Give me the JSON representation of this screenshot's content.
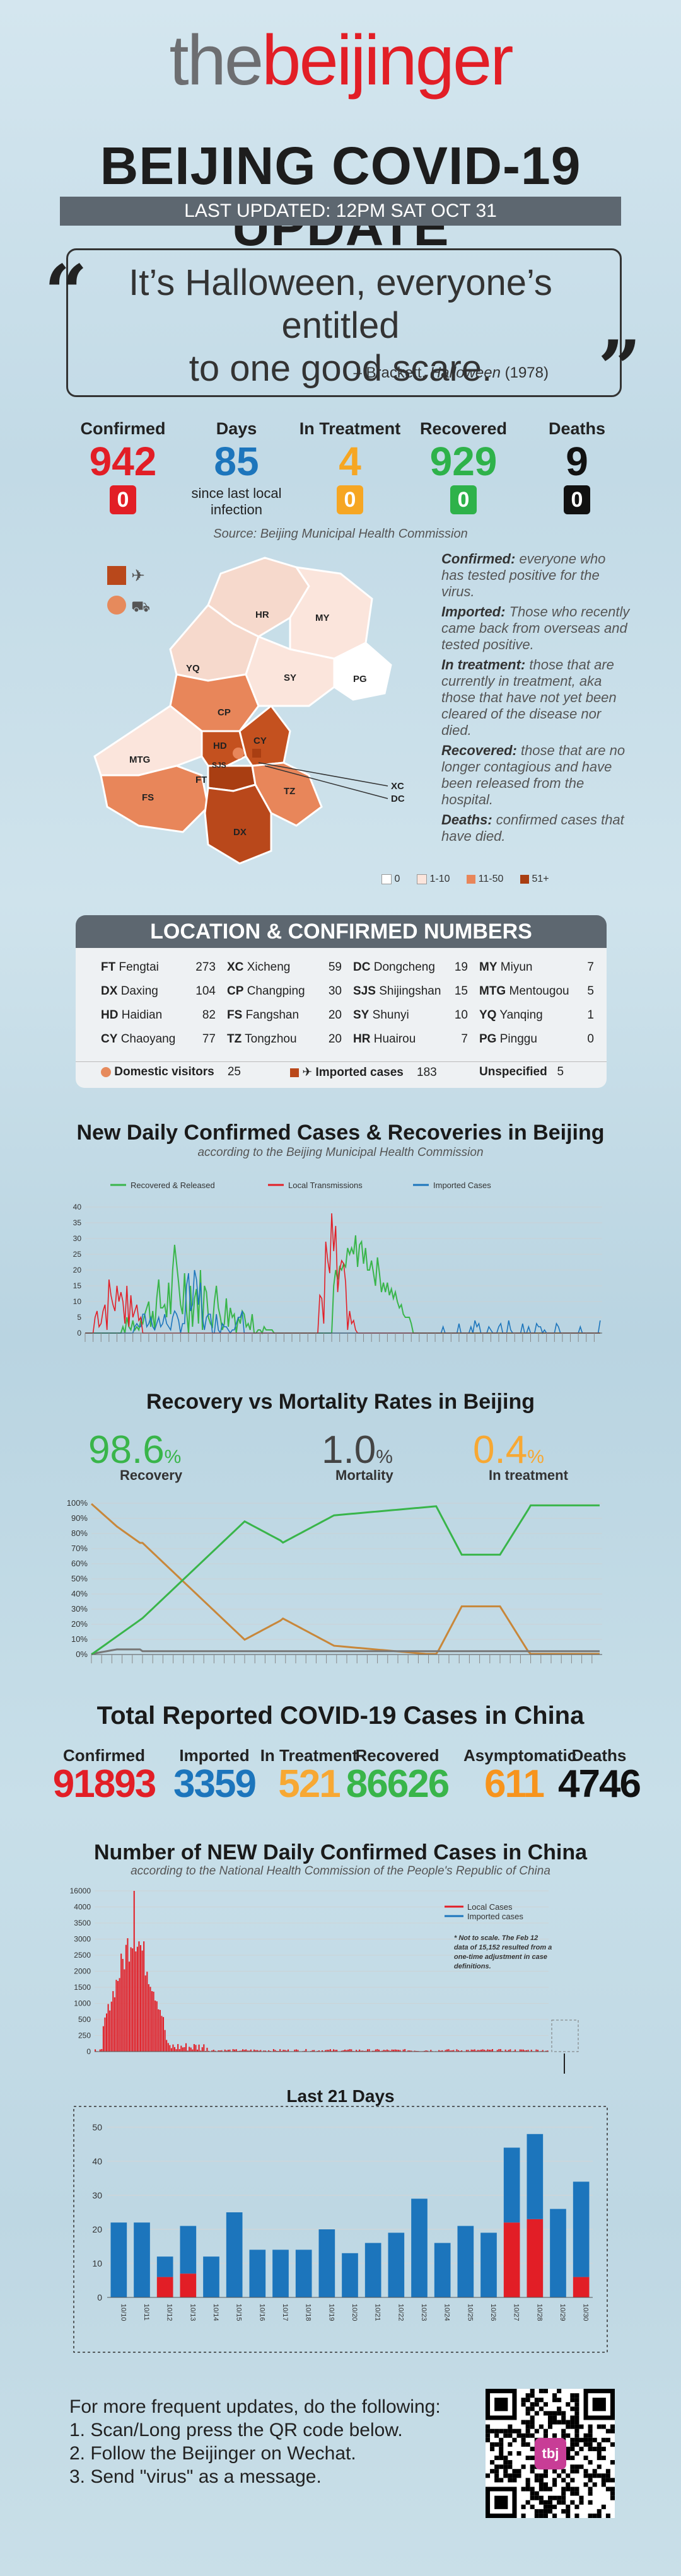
{
  "logo": {
    "the": "the",
    "beijinger": "beijinger"
  },
  "title": "BEIJING COVID-19 UPDATE",
  "last_updated": "LAST UPDATED:  12PM SAT OCT 31",
  "quote": {
    "line1": "It’s Halloween, everyone’s entitled",
    "line2": "to one good scare.",
    "attribution_pre": "– Brackett, ",
    "attribution_work": "Halloween",
    "attribution_year": " (1978)"
  },
  "stats": [
    {
      "label": "Confirmed",
      "value": "942",
      "change": "0",
      "color": "#e21e26"
    },
    {
      "label": "Days",
      "value": "85",
      "sub": "since last local infection",
      "color": "#1c75bc"
    },
    {
      "label": "In Treatment",
      "value": "4",
      "change": "0",
      "color": "#f6a623"
    },
    {
      "label": "Recovered",
      "value": "929",
      "change": "0",
      "color": "#2eb24a"
    },
    {
      "label": "Deaths",
      "value": "9",
      "change": "0",
      "color": "#111111"
    }
  ],
  "source": "Source: Beijing Municipal Health Commission",
  "definitions": [
    {
      "term": "Confirmed:",
      "text": " everyone who has tested positive for the virus."
    },
    {
      "term": "Imported:",
      "text": " Those who recently came back from overseas and tested positive."
    },
    {
      "term": "In treatment:",
      "text": " those that are currently in treatment, aka those that have not yet been cleared of the disease nor died."
    },
    {
      "term": "Recovered:",
      "text": " those that are no longer contagious and have been released from the hospital."
    },
    {
      "term": "Deaths:",
      "text": " confirmed cases that have died."
    }
  ],
  "map_legend": [
    "0",
    "1-10",
    "11-50",
    "51+"
  ],
  "map_labels": [
    "YQ",
    "HR",
    "MY",
    "PG",
    "CP",
    "SY",
    "MTG",
    "HD",
    "CY",
    "XC",
    "DC",
    "SJS",
    "FT",
    "FS",
    "TZ",
    "DX"
  ],
  "location": {
    "title": "LOCATION & CONFIRMED NUMBERS",
    "cols": [
      [
        {
          "code": "FT",
          "name": "Fengtai",
          "n": "273"
        },
        {
          "code": "DX",
          "name": "Daxing",
          "n": "104"
        },
        {
          "code": "HD",
          "name": "Haidian",
          "n": "82"
        },
        {
          "code": "CY",
          "name": "Chaoyang",
          "n": "77"
        }
      ],
      [
        {
          "code": "XC",
          "name": "Xicheng",
          "n": "59"
        },
        {
          "code": "CP",
          "name": "Changping",
          "n": "30"
        },
        {
          "code": "FS",
          "name": "Fangshan",
          "n": "20"
        },
        {
          "code": "TZ",
          "name": "Tongzhou",
          "n": "20"
        }
      ],
      [
        {
          "code": "DC",
          "name": "Dongcheng",
          "n": "19"
        },
        {
          "code": "SJS",
          "name": "Shijingshan",
          "n": "15"
        },
        {
          "code": "SY",
          "name": "Shunyi",
          "n": "10"
        },
        {
          "code": "HR",
          "name": "Huairou",
          "n": "7"
        }
      ],
      [
        {
          "code": "MY",
          "name": "Miyun",
          "n": "7"
        },
        {
          "code": "MTG",
          "name": "Mentougou",
          "n": "5"
        },
        {
          "code": "YQ",
          "name": "Yanqing",
          "n": "1"
        },
        {
          "code": "PG",
          "name": "Pinggu",
          "n": "0"
        }
      ]
    ],
    "domestic_label": "Domestic visitors",
    "domestic_n": "25",
    "imported_label": "Imported cases",
    "imported_n": "183",
    "unspecified_label": "Unspecified",
    "unspecified_n": "5"
  },
  "daily_title": "New Daily Confirmed Cases & Recoveries in Beijing",
  "daily_sub": "according to the Beijing Municipal Health Commission",
  "rates_title": "Recovery vs Mortality Rates in Beijing",
  "rates": [
    {
      "value": "98.6",
      "unit": "%",
      "label": "Recovery",
      "color": "#39b54a"
    },
    {
      "value": "1.0",
      "unit": "%",
      "label": "Mortality",
      "color": "#444444"
    },
    {
      "value": "0.4",
      "unit": "%",
      "label": "In treatment",
      "color": "#f7a833"
    }
  ],
  "china_title": "Total Reported COVID-19 Cases in China",
  "china_totals": [
    {
      "label": "Confirmed",
      "value": "91893",
      "color": "#e21e26"
    },
    {
      "label": "Imported",
      "value": "3359",
      "color": "#1c75bc"
    },
    {
      "label": "In Treatment",
      "value": "521",
      "color": "#f7a833"
    },
    {
      "label": "Recovered",
      "value": "86626",
      "color": "#39b54a"
    },
    {
      "label": "Asymptomatic",
      "value": "611",
      "color": "#f7941d"
    },
    {
      "label": "Deaths",
      "value": "4746",
      "color": "#111111"
    }
  ],
  "china_daily_title": "Number of NEW Daily Confirmed Cases in China",
  "china_daily_sub": "according to the National Health Commission of the People's Republic of China",
  "china_note": "* Not to scale. The Feb 12 data of 15,152 resulted from a one-time adjustment in case definitions.",
  "last21_title": "Last 21 Days",
  "footer": {
    "line0": "For more frequent updates, do the following:",
    "line1": "1. Scan/Long press the QR code below.",
    "line2": "2. Follow the Beijinger on Wechat.",
    "line3": "3. Send \"virus\" as a message.",
    "qr_label": "tbj"
  },
  "chart_data": [
    {
      "type": "line",
      "title": "New Daily Confirmed Cases & Recoveries in Beijing",
      "ylim": [
        0,
        40
      ],
      "yticks": [
        0,
        5,
        10,
        15,
        20,
        25,
        30,
        35,
        40
      ],
      "legend": [
        "Recovered & Released",
        "Local Transmissions",
        "Imported Cases"
      ],
      "colors": [
        "#39b54a",
        "#e21e26",
        "#1c75bc"
      ]
    },
    {
      "type": "line",
      "title": "Recovery vs Mortality Rates in Beijing",
      "ylim": [
        0,
        100
      ],
      "yticks": [
        "0%",
        "10%",
        "20%",
        "30%",
        "40%",
        "50%",
        "60%",
        "70%",
        "80%",
        "90%",
        "100%"
      ],
      "legend": [
        "Recovery",
        "Mortality",
        "In treatment"
      ]
    },
    {
      "type": "bar",
      "title": "Number of NEW Daily Confirmed Cases in China",
      "ylim": [
        0,
        16000
      ],
      "yticks": [
        "0",
        "250",
        "500",
        "1000",
        "1500",
        "2000",
        "2500",
        "3000",
        "3500",
        "4000",
        "16000"
      ],
      "legend": [
        "Local Cases",
        "Imported cases"
      ]
    },
    {
      "type": "bar",
      "title": "Last 21 Days",
      "ylim": [
        0,
        50
      ],
      "yticks": [
        0,
        10,
        20,
        30,
        40,
        50
      ],
      "categories": [
        "10/10",
        "10/11",
        "10/12",
        "10/13",
        "10/14",
        "10/15",
        "10/16",
        "10/17",
        "10/18",
        "10/19",
        "10/20",
        "10/21",
        "10/22",
        "10/23",
        "10/24",
        "10/25",
        "10/26",
        "10/27",
        "10/28",
        "10/29",
        "10/30"
      ],
      "series": [
        {
          "name": "Local Cases",
          "values": [
            0,
            0,
            6,
            7,
            0,
            0,
            0,
            0,
            0,
            0,
            0,
            0,
            0,
            0,
            0,
            0,
            0,
            22,
            23,
            0,
            6
          ]
        },
        {
          "name": "Imported cases",
          "values": [
            22,
            22,
            6,
            14,
            12,
            25,
            14,
            14,
            14,
            20,
            13,
            16,
            19,
            29,
            16,
            21,
            19,
            22,
            25,
            26,
            28
          ]
        }
      ]
    }
  ]
}
